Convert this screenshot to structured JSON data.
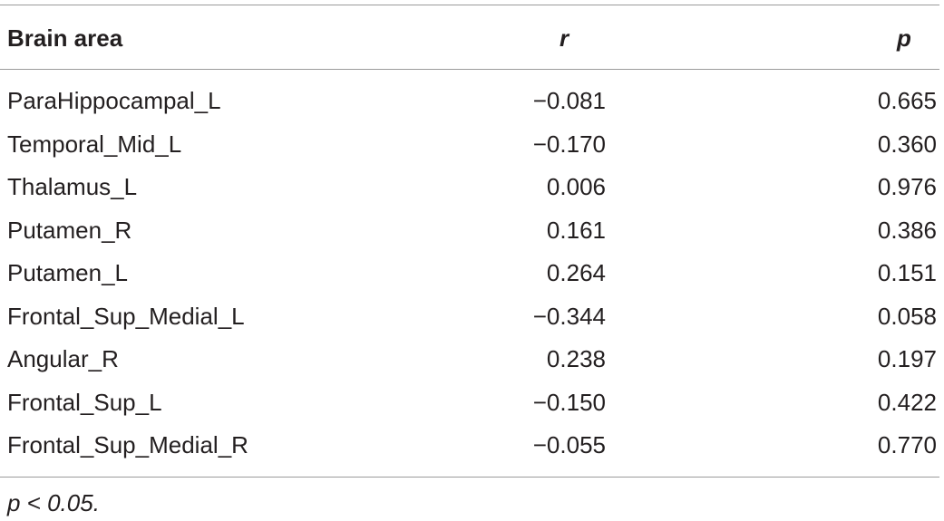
{
  "table": {
    "header": [
      "Brain area",
      "r",
      "p"
    ],
    "rows": [
      [
        "ParaHippocampal_L",
        "−0.081",
        "0.665"
      ],
      [
        "Temporal_Mid_L",
        "−0.170",
        "0.360"
      ],
      [
        "Thalamus_L",
        "0.006",
        "0.976"
      ],
      [
        "Putamen_R",
        "0.161",
        "0.386"
      ],
      [
        "Putamen_L",
        "0.264",
        "0.151"
      ],
      [
        "Frontal_Sup_Medial_L",
        "−0.344",
        "0.058"
      ],
      [
        "Angular_R",
        "0.238",
        "0.197"
      ],
      [
        "Frontal_Sup_L",
        "−0.150",
        "0.422"
      ],
      [
        "Frontal_Sup_Medial_R",
        "−0.055",
        "0.770"
      ]
    ],
    "footnote": "p < 0.05."
  }
}
